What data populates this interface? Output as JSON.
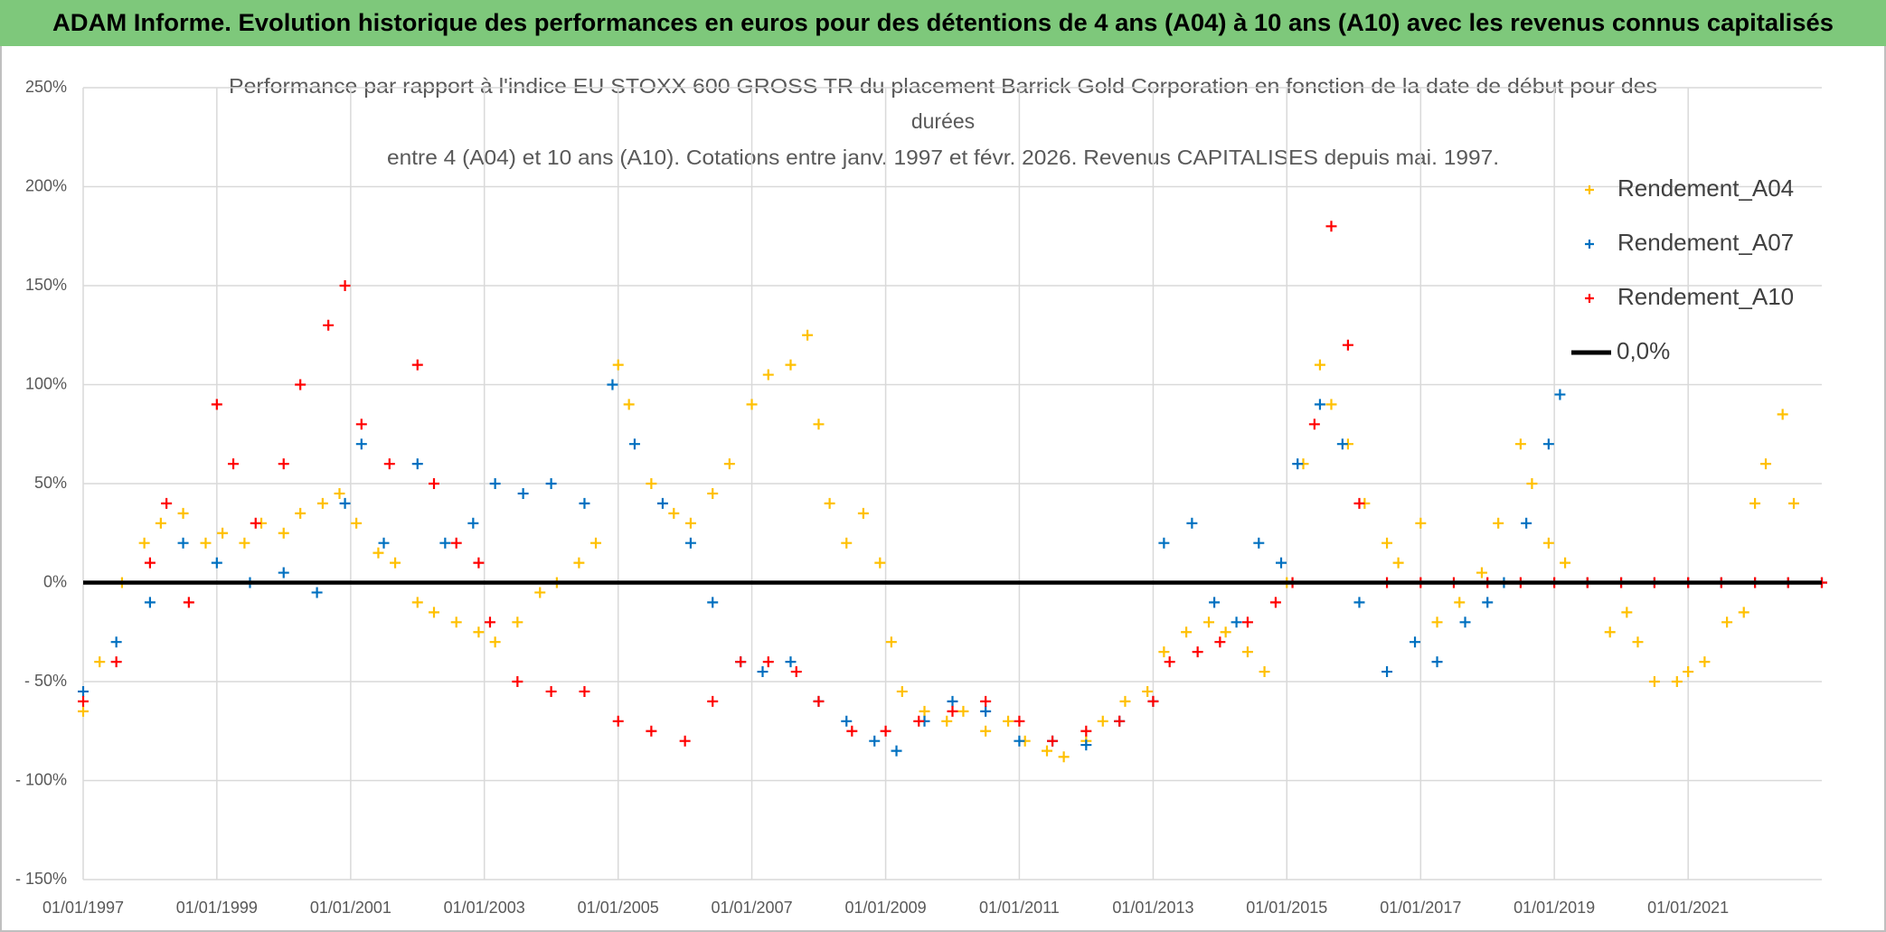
{
  "chart_data": {
    "type": "scatter",
    "banner": "ADAM Informe. Evolution historique des performances en euros pour des détentions de 4 ans (A04) à 10 ans (A10) avec les revenus connus capitalisés",
    "title_lines": [
      "Performance par rapport à l'indice EU STOXX 600 GROSS TR  du placement Barrick Gold Corporation en fonction de la date de début pour des",
      "durées",
      "entre 4 (A04) et 10 ans (A10). Cotations entre janv. 1997 et févr. 2026. Revenus CAPITALISES depuis mai. 1997."
    ],
    "xlim": [
      "1997-01-01",
      "2023-01-01"
    ],
    "xticks": [
      {
        "value": "1997-01-01",
        "label": "01/01/1997"
      },
      {
        "value": "1999-01-01",
        "label": "01/01/1999"
      },
      {
        "value": "2001-01-01",
        "label": "01/01/2001"
      },
      {
        "value": "2003-01-01",
        "label": "01/01/2003"
      },
      {
        "value": "2005-01-01",
        "label": "01/01/2005"
      },
      {
        "value": "2007-01-01",
        "label": "01/01/2007"
      },
      {
        "value": "2009-01-01",
        "label": "01/01/2009"
      },
      {
        "value": "2011-01-01",
        "label": "01/01/2011"
      },
      {
        "value": "2013-01-01",
        "label": "01/01/2013"
      },
      {
        "value": "2015-01-01",
        "label": "01/01/2015"
      },
      {
        "value": "2017-01-01",
        "label": "01/01/2017"
      },
      {
        "value": "2019-01-01",
        "label": "01/01/2019"
      },
      {
        "value": "2021-01-01",
        "label": "01/01/2021"
      }
    ],
    "ylim": [
      -150,
      250
    ],
    "yticks": [
      {
        "value": 250,
        "label": "250%"
      },
      {
        "value": 200,
        "label": "200%"
      },
      {
        "value": 150,
        "label": "150%"
      },
      {
        "value": 100,
        "label": "100%"
      },
      {
        "value": 50,
        "label": "50%"
      },
      {
        "value": 0,
        "label": "0%"
      },
      {
        "value": -50,
        "label": "- 50%"
      },
      {
        "value": -100,
        "label": "- 100%"
      },
      {
        "value": -150,
        "label": "- 150%"
      }
    ],
    "grid": true,
    "legend": "right",
    "reference_line": {
      "name": "0,0%",
      "value": 0,
      "color": "#000000"
    },
    "series": [
      {
        "name": "Rendement_A04",
        "color": "#ffc000",
        "x": [
          "1997-01-01",
          "1997-04-01",
          "1997-08-01",
          "1997-12-01",
          "1998-03-01",
          "1998-07-01",
          "1998-11-01",
          "1999-02-01",
          "1999-06-01",
          "1999-09-01",
          "2000-01-01",
          "2000-04-01",
          "2000-08-01",
          "2000-11-01",
          "2001-02-01",
          "2001-06-01",
          "2001-09-01",
          "2002-01-01",
          "2002-04-01",
          "2002-08-01",
          "2002-12-01",
          "2003-03-01",
          "2003-07-01",
          "2003-11-01",
          "2004-02-01",
          "2004-06-01",
          "2004-09-01",
          "2005-01-01",
          "2005-03-01",
          "2005-07-01",
          "2005-11-01",
          "2006-02-01",
          "2006-06-01",
          "2006-09-01",
          "2007-01-01",
          "2007-04-01",
          "2007-08-01",
          "2007-11-01",
          "2008-01-01",
          "2008-03-01",
          "2008-06-01",
          "2008-09-01",
          "2008-12-01",
          "2009-02-01",
          "2009-04-01",
          "2009-08-01",
          "2009-12-01",
          "2010-03-01",
          "2010-07-01",
          "2010-11-01",
          "2011-02-01",
          "2011-06-01",
          "2011-09-01",
          "2012-01-01",
          "2012-04-01",
          "2012-08-01",
          "2012-12-01",
          "2013-03-01",
          "2013-07-01",
          "2013-11-01",
          "2014-02-01",
          "2014-06-01",
          "2014-09-01",
          "2015-01-01",
          "2015-04-01",
          "2015-07-01",
          "2015-09-01",
          "2015-12-01",
          "2016-03-01",
          "2016-07-01",
          "2016-09-01",
          "2017-01-01",
          "2017-04-01",
          "2017-08-01",
          "2017-12-01",
          "2018-03-01",
          "2018-07-01",
          "2018-09-01",
          "2018-12-01",
          "2019-03-01",
          "2019-07-01",
          "2019-11-01",
          "2020-02-01",
          "2020-04-01",
          "2020-07-01",
          "2020-11-01",
          "2021-01-01",
          "2021-04-01",
          "2021-08-01",
          "2021-11-01",
          "2022-01-01",
          "2022-03-01",
          "2022-06-01",
          "2022-08-01"
        ],
        "values": [
          -65,
          -40,
          0,
          20,
          30,
          35,
          20,
          25,
          20,
          30,
          25,
          35,
          40,
          45,
          30,
          15,
          10,
          -10,
          -15,
          -20,
          -25,
          -30,
          -20,
          -5,
          0,
          10,
          20,
          110,
          90,
          50,
          35,
          30,
          45,
          60,
          90,
          105,
          110,
          125,
          80,
          40,
          20,
          35,
          10,
          -30,
          -55,
          -65,
          -70,
          -65,
          -75,
          -70,
          -80,
          -85,
          -88,
          -80,
          -70,
          -60,
          -55,
          -35,
          -25,
          -20,
          -25,
          -35,
          -45,
          0,
          60,
          110,
          90,
          70,
          40,
          20,
          10,
          30,
          -20,
          -10,
          5,
          30,
          70,
          50,
          20,
          10,
          0,
          -25,
          -15,
          -30,
          -50,
          -50,
          -45,
          -40,
          -20,
          -15,
          40,
          60,
          85,
          40
        ]
      },
      {
        "name": "Rendement_A07",
        "color": "#0070c0",
        "x": [
          "1997-01-01",
          "1997-07-01",
          "1998-01-01",
          "1998-07-01",
          "1999-01-01",
          "1999-07-01",
          "2000-01-01",
          "2000-07-01",
          "2000-12-01",
          "2001-03-01",
          "2001-07-01",
          "2002-01-01",
          "2002-06-01",
          "2002-11-01",
          "2003-03-01",
          "2003-08-01",
          "2004-01-01",
          "2004-07-01",
          "2004-12-01",
          "2005-04-01",
          "2005-09-01",
          "2006-02-01",
          "2006-06-01",
          "2006-11-01",
          "2007-03-01",
          "2007-08-01",
          "2008-01-01",
          "2008-06-01",
          "2008-11-01",
          "2009-03-01",
          "2009-08-01",
          "2010-01-01",
          "2010-07-01",
          "2011-01-01",
          "2011-07-01",
          "2012-01-01",
          "2012-07-01",
          "2013-01-01",
          "2013-03-01",
          "2013-08-01",
          "2013-12-01",
          "2014-04-01",
          "2014-08-01",
          "2014-12-01",
          "2015-03-01",
          "2015-07-01",
          "2015-11-01",
          "2016-02-01",
          "2016-07-01",
          "2016-12-01",
          "2017-04-01",
          "2017-09-01",
          "2018-01-01",
          "2018-04-01",
          "2018-08-01",
          "2018-12-01",
          "2019-02-01",
          "2019-07-01",
          "2020-01-01",
          "2020-07-01",
          "2021-01-01",
          "2021-07-01",
          "2022-01-01",
          "2022-07-01",
          "2023-01-01"
        ],
        "values": [
          -55,
          -30,
          -10,
          20,
          10,
          0,
          5,
          -5,
          40,
          70,
          20,
          60,
          20,
          30,
          50,
          45,
          50,
          40,
          100,
          70,
          40,
          20,
          -10,
          -40,
          -45,
          -40,
          -60,
          -70,
          -80,
          -85,
          -70,
          -60,
          -65,
          -80,
          -80,
          -82,
          -70,
          -60,
          20,
          30,
          -10,
          -20,
          20,
          10,
          60,
          90,
          70,
          -10,
          -45,
          -30,
          -40,
          -20,
          -10,
          0,
          30,
          70,
          95,
          0,
          0,
          0,
          0,
          0,
          0,
          0,
          0
        ]
      },
      {
        "name": "Rendement_A10",
        "color": "#ff0000",
        "x": [
          "1997-01-01",
          "1997-07-01",
          "1998-01-01",
          "1998-04-01",
          "1998-08-01",
          "1999-01-01",
          "1999-04-01",
          "1999-08-01",
          "2000-01-01",
          "2000-04-01",
          "2000-09-01",
          "2000-12-01",
          "2001-03-01",
          "2001-08-01",
          "2002-01-01",
          "2002-04-01",
          "2002-08-01",
          "2002-12-01",
          "2003-02-01",
          "2003-07-01",
          "2004-01-01",
          "2004-07-01",
          "2005-01-01",
          "2005-07-01",
          "2006-01-01",
          "2006-06-01",
          "2006-11-01",
          "2007-04-01",
          "2007-09-01",
          "2008-01-01",
          "2008-07-01",
          "2009-01-01",
          "2009-07-01",
          "2010-01-01",
          "2010-07-01",
          "2011-01-01",
          "2011-07-01",
          "2012-01-01",
          "2012-07-01",
          "2013-01-01",
          "2013-04-01",
          "2013-09-01",
          "2014-01-01",
          "2014-06-01",
          "2014-11-01",
          "2015-02-01",
          "2015-06-01",
          "2015-09-01",
          "2015-12-01",
          "2016-02-01",
          "2016-07-01",
          "2017-01-01",
          "2017-07-01",
          "2018-01-01",
          "2018-07-01",
          "2019-01-01",
          "2019-07-01",
          "2020-01-01",
          "2020-07-01",
          "2021-01-01",
          "2021-07-01",
          "2022-01-01",
          "2022-07-01",
          "2023-01-01"
        ],
        "values": [
          -60,
          -40,
          10,
          40,
          -10,
          90,
          60,
          30,
          60,
          100,
          130,
          150,
          80,
          60,
          110,
          50,
          20,
          10,
          -20,
          -50,
          -55,
          -55,
          -70,
          -75,
          -80,
          -60,
          -40,
          -40,
          -45,
          -60,
          -75,
          -75,
          -70,
          -65,
          -60,
          -70,
          -80,
          -75,
          -70,
          -60,
          -40,
          -35,
          -30,
          -20,
          -10,
          0,
          80,
          180,
          120,
          40,
          0,
          0,
          0,
          0,
          0,
          0,
          0,
          0,
          0,
          0,
          0,
          0,
          0,
          0
        ]
      }
    ]
  }
}
